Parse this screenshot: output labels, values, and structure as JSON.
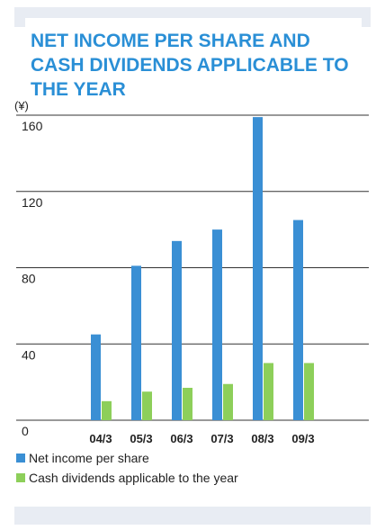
{
  "chart_data": {
    "type": "bar",
    "title_lines": [
      "NET INCOME PER SHARE AND",
      "CASH DIVIDENDS APPLICABLE TO",
      "THE YEAR"
    ],
    "y_unit": "(¥)",
    "categories": [
      "04/3",
      "05/3",
      "06/3",
      "07/3",
      "08/3",
      "09/3"
    ],
    "series": [
      {
        "name": "Net income per share",
        "color": "#3a8fd4",
        "values": [
          45,
          81,
          94,
          100,
          159,
          105
        ]
      },
      {
        "name": "Cash dividends applicable to the year",
        "color": "#8dcf5a",
        "values": [
          10,
          15,
          17,
          19,
          30,
          30
        ]
      }
    ],
    "ylim": [
      0,
      160
    ],
    "yticks": [
      0,
      40,
      80,
      120,
      160
    ],
    "grid": true
  }
}
